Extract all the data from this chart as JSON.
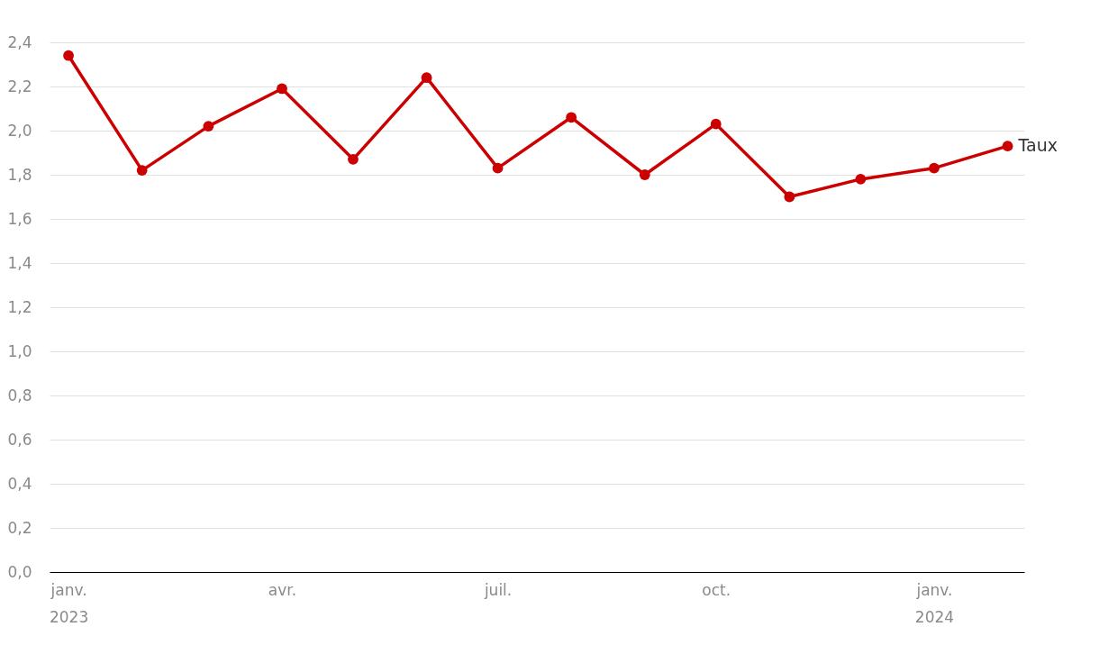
{
  "chart_data": {
    "type": "line",
    "x": [
      "2023-01",
      "2023-02",
      "2023-03",
      "2023-04",
      "2023-05",
      "2023-06",
      "2023-07",
      "2023-08",
      "2023-09",
      "2023-10",
      "2023-11",
      "2023-12",
      "2024-01",
      "2024-02"
    ],
    "series": [
      {
        "name": "Taux",
        "color": "#cc0000",
        "values": [
          2.34,
          1.82,
          2.02,
          2.19,
          1.87,
          2.24,
          1.83,
          2.06,
          1.8,
          2.03,
          1.7,
          1.78,
          1.83,
          1.93
        ]
      }
    ],
    "xlim": [
      "2022-12-24",
      "2024-02-08"
    ],
    "xticks": [
      {
        "value": "2023-01",
        "label": "janv. 2023"
      },
      {
        "value": "2023-04",
        "label": "avr."
      },
      {
        "value": "2023-07",
        "label": "juil."
      },
      {
        "value": "2023-10",
        "label": "oct."
      },
      {
        "value": "2024-01",
        "label": "janv. 2024"
      }
    ],
    "ylim": [
      0,
      2.4
    ],
    "yticks": [
      {
        "value": 0,
        "label": "0,0"
      },
      {
        "value": 0.2,
        "label": "0,2"
      },
      {
        "value": 0.4,
        "label": "0,4"
      },
      {
        "value": 0.6,
        "label": "0,6"
      },
      {
        "value": 0.8,
        "label": "0,8"
      },
      {
        "value": 1,
        "label": "1,0"
      },
      {
        "value": 1.2,
        "label": "1,2"
      },
      {
        "value": 1.4,
        "label": "1,4"
      },
      {
        "value": 1.6,
        "label": "1,6"
      },
      {
        "value": 1.8,
        "label": "1,8"
      },
      {
        "value": 2,
        "label": "2,0"
      },
      {
        "value": 2.2,
        "label": "2,2"
      },
      {
        "value": 2.4,
        "label": "2,4"
      }
    ],
    "grid": "y",
    "legend": false,
    "marker": "circle",
    "line_style": "solid"
  }
}
